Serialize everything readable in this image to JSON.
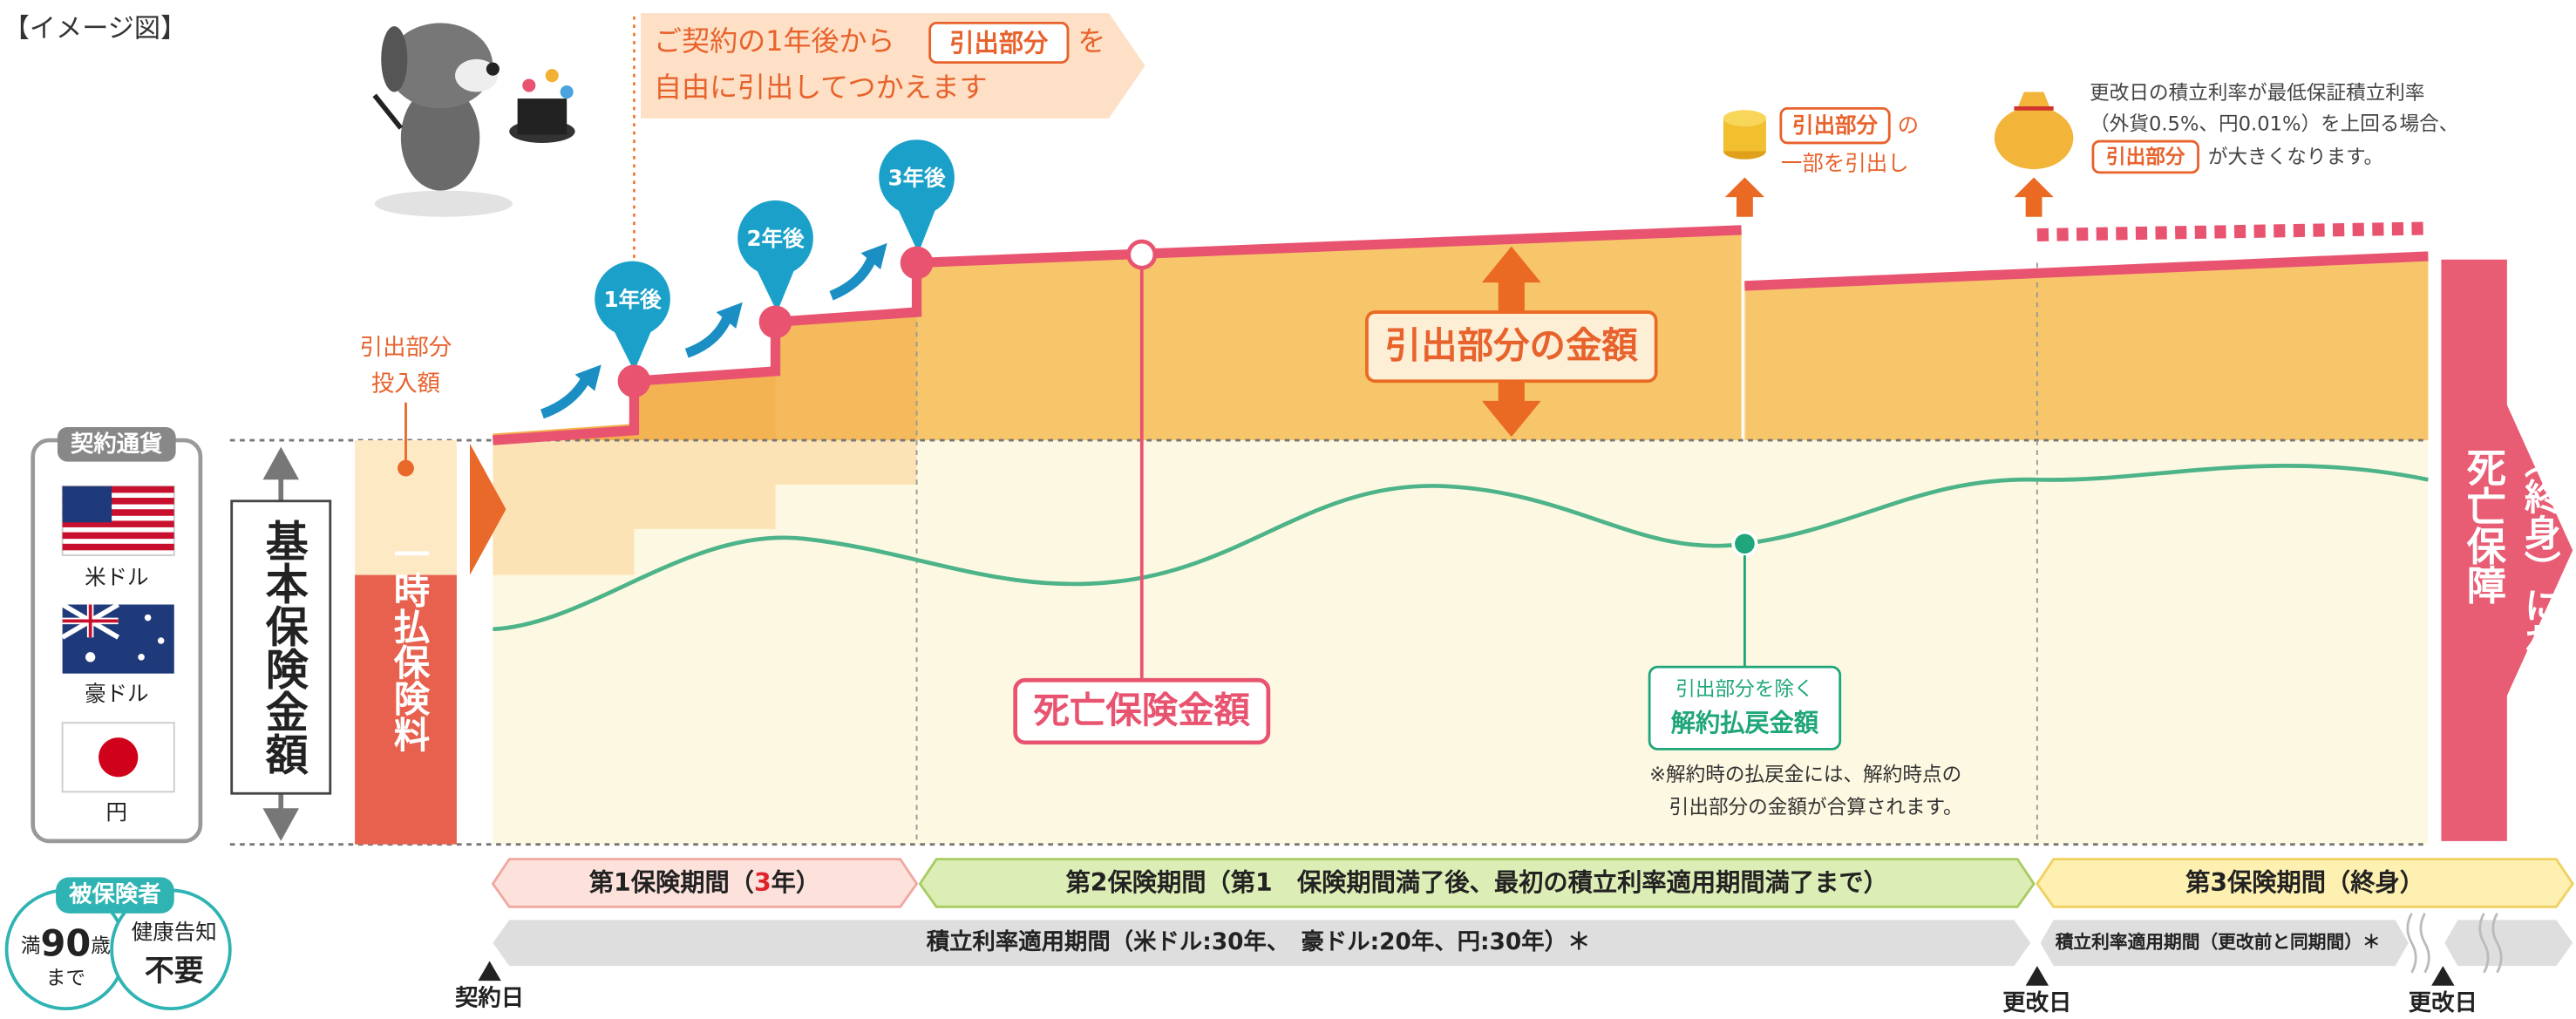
{
  "header": {
    "label": "【イメージ図】"
  },
  "callout": {
    "line1_pre": "ご契約の1年後から",
    "line1_badge": "引出部分",
    "line1_post": "を",
    "line2": "自由に引出してつかえます"
  },
  "pins": [
    "1年後",
    "2年後",
    "3年後"
  ],
  "premium": {
    "top_label": [
      "引出部分",
      "投入額"
    ],
    "bar_label": "一時払保険料"
  },
  "currency": {
    "title": "契約通貨",
    "items": [
      "米ドル",
      "豪ドル",
      "円"
    ]
  },
  "basic_amount": "基本保険金額",
  "withdrawal_amount": "引出部分の金額",
  "death_benefit": "死亡保険金額",
  "surrender": {
    "line1": "引出部分を除く",
    "line2": "解約払戻金額",
    "note": [
      "※解約時の払戻金には、解約時点の",
      "引出部分の金額が合算されます。"
    ]
  },
  "coin_note": {
    "badge": "引出部分",
    "post": "の",
    "line2": "一部を引出し"
  },
  "bag_note": {
    "line1": "更改日の積立利率が最低保証積立利率",
    "line2": "（外貨0.5%、円0.01%）を上回る場合、",
    "badge": "引出部分",
    "post": "が大きくなります。"
  },
  "lifetime": {
    "line1": "生涯（終身）にわたる",
    "line2": "死亡保障"
  },
  "periods": {
    "first": {
      "pre": "第1保険期間（",
      "years": "3",
      "post": "年）"
    },
    "second": "第2保険期間（第1　保険期間満了後、最初の積立利率適用期間満了まで）",
    "third": "第3保険期間（終身）"
  },
  "rate_periods": {
    "main": "積立利率適用期間（米ドル:30年、　豪ドル:20年、円:30年）＊",
    "renewed": "積立利率適用期間（更改前と同期間）＊"
  },
  "dates": {
    "contract": "契約日",
    "renewal_1": "更改日",
    "renewal_2": "更改日"
  },
  "insured": {
    "title": "被保険者",
    "age_pre": "満",
    "age": 90,
    "age_unit": "歳",
    "age_post": "まで",
    "health_line1": "健康告知",
    "health_line2": "不要"
  }
}
